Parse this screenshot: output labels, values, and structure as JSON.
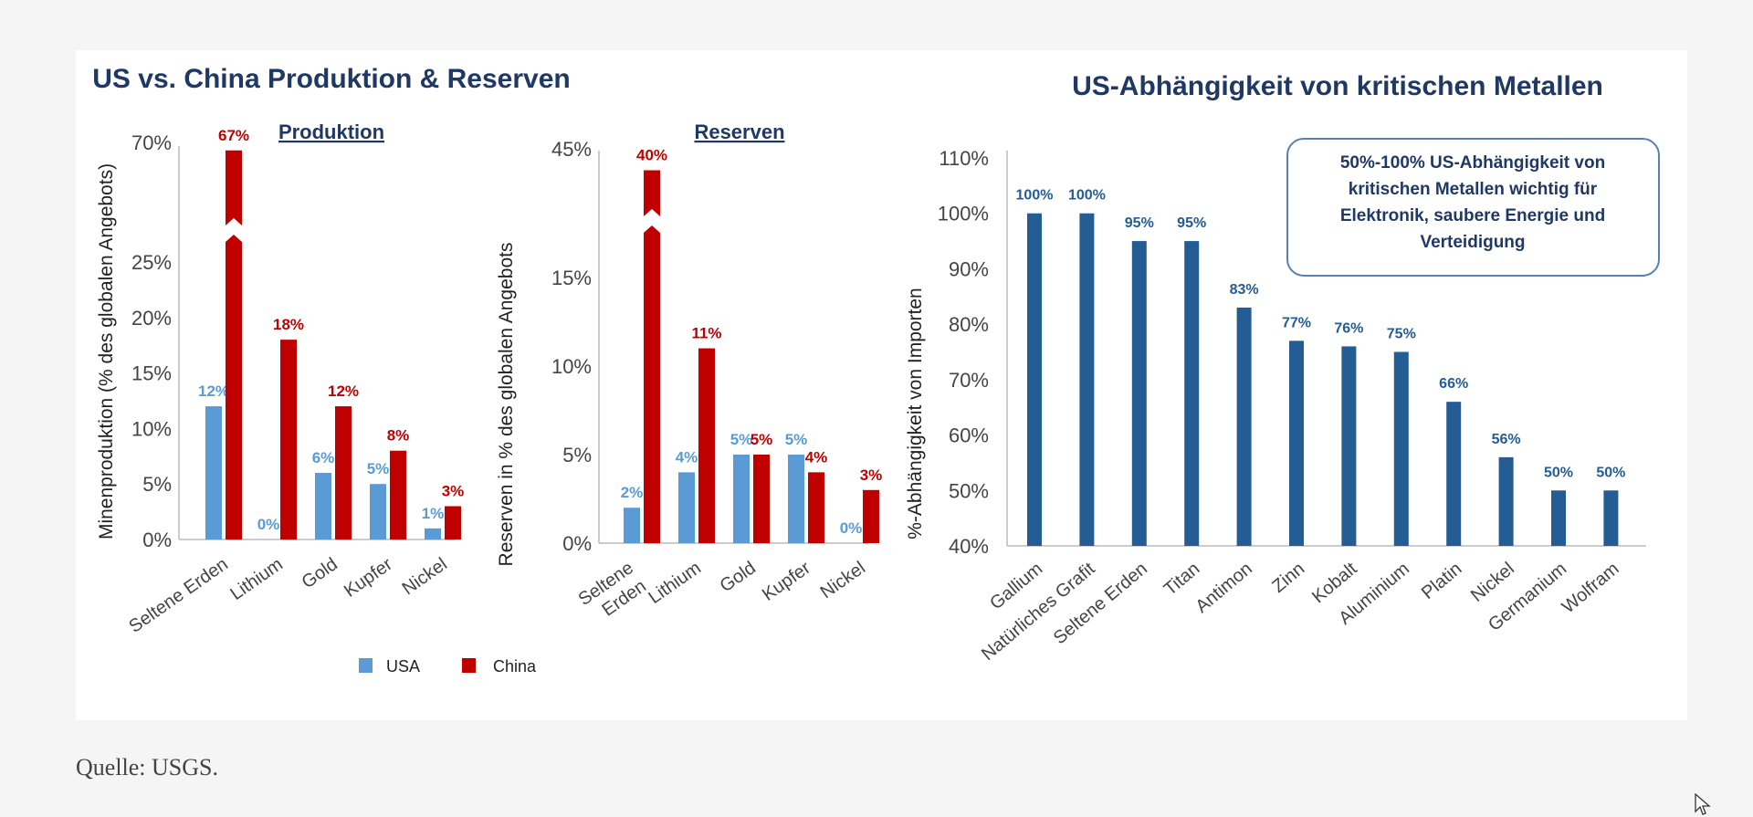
{
  "colors": {
    "usa": "#5b9bd5",
    "china": "#c00000",
    "dependency": "#245c94",
    "title": "#1f3864"
  },
  "source": "Quelle: USGS.",
  "chart_data": [
    {
      "id": "produktion",
      "type": "bar",
      "group_title": "US vs. China Produktion & Reserven",
      "title": "Produktion",
      "ylabel": "Minenproduktion (% des globalen Angebots)",
      "yticks": [
        "0%",
        "5%",
        "10%",
        "15%",
        "20%",
        "25%",
        "70%"
      ],
      "ylim": [
        0,
        70
      ],
      "axis_break": true,
      "categories": [
        "Seltene Erden",
        "Lithium",
        "Gold",
        "Kupfer",
        "Nickel"
      ],
      "series": [
        {
          "name": "USA",
          "values": [
            12,
            0,
            6,
            5,
            1
          ],
          "labels": [
            "12%",
            "0%",
            "6%",
            "5%",
            "1%"
          ]
        },
        {
          "name": "China",
          "values": [
            67,
            18,
            12,
            8,
            3
          ],
          "labels": [
            "67%",
            "18%",
            "12%",
            "8%",
            "3%"
          ]
        }
      ]
    },
    {
      "id": "reserven",
      "type": "bar",
      "title": "Reserven",
      "ylabel": "Reserven in % des globalen Angebots",
      "yticks": [
        "0%",
        "5%",
        "10%",
        "15%",
        "45%"
      ],
      "ylim": [
        0,
        45
      ],
      "axis_break": true,
      "categories": [
        "Seltene Erden",
        "Lithium",
        "Gold",
        "Kupfer",
        "Nickel"
      ],
      "series": [
        {
          "name": "USA",
          "values": [
            2,
            4,
            5,
            5,
            0
          ],
          "labels": [
            "2%",
            "4%",
            "5%",
            "5%",
            "0%"
          ]
        },
        {
          "name": "China",
          "values": [
            40,
            11,
            5,
            4,
            3
          ],
          "labels": [
            "40%",
            "11%",
            "5%",
            "4%",
            "3%"
          ]
        }
      ],
      "legend": [
        "USA",
        "China"
      ]
    },
    {
      "id": "abhaengigkeit",
      "type": "bar",
      "title": "US-Abhängigkeit von kritischen Metallen",
      "ylabel": "%-Abhängigkeit von Importen",
      "yticks": [
        "40%",
        "50%",
        "60%",
        "70%",
        "80%",
        "90%",
        "100%",
        "110%"
      ],
      "ylim": [
        40,
        110
      ],
      "categories": [
        "Gallium",
        "Natürliches Grafit",
        "Seltene Erden",
        "Titan",
        "Antimon",
        "Zinn",
        "Kobalt",
        "Aluminium",
        "Platin",
        "Nickel",
        "Germanium",
        "Wolfram"
      ],
      "values": [
        100,
        100,
        95,
        95,
        83,
        77,
        76,
        75,
        66,
        56,
        50,
        50
      ],
      "labels": [
        "100%",
        "100%",
        "95%",
        "95%",
        "83%",
        "77%",
        "76%",
        "75%",
        "66%",
        "56%",
        "50%",
        "50%"
      ],
      "annotation": [
        "50%-100% US-Abhängigkeit von",
        "kritischen Metallen wichtig für",
        "Elektronik, saubere Energie und",
        "Verteidigung"
      ]
    }
  ]
}
